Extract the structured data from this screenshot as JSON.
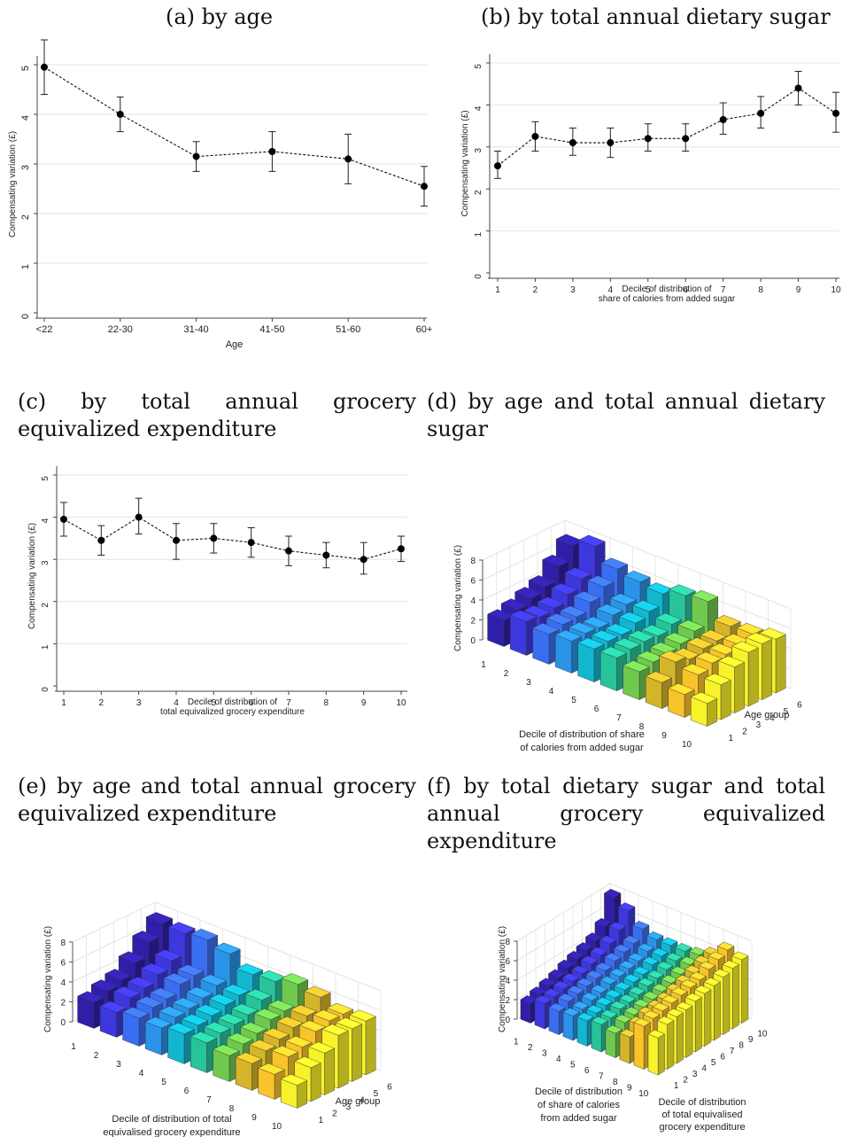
{
  "captions": {
    "a": "(a) by age",
    "b": "(b) by total annual dietary sugar",
    "c": "(c) by total annual grocery equivalized expenditure",
    "d": "(d) by age and total annual dietary sugar",
    "e": "(e) by age and total annual grocery equivalized expenditure",
    "f": "(f) by total dietary sugar and total annual grocery equivalized expenditure"
  },
  "chart_data": [
    {
      "id": "a",
      "type": "line",
      "categories": [
        "<22",
        "22-30",
        "31-40",
        "41-50",
        "51-60",
        "60+"
      ],
      "values": [
        4.95,
        4.0,
        3.15,
        3.25,
        3.1,
        2.55
      ],
      "ci_low": [
        4.4,
        3.65,
        2.85,
        2.85,
        2.6,
        2.15
      ],
      "ci_high": [
        5.5,
        4.35,
        3.45,
        3.65,
        3.6,
        2.95
      ],
      "xlabel": "Age",
      "ylabel": "Compensating variation (£)",
      "ylim": [
        0,
        5
      ],
      "yticks": [
        "0",
        "1",
        "2",
        "3",
        "4",
        "5"
      ],
      "grid": true
    },
    {
      "id": "b",
      "type": "line",
      "categories": [
        "1",
        "2",
        "3",
        "4",
        "5",
        "6",
        "7",
        "8",
        "9",
        "10"
      ],
      "values": [
        2.55,
        3.25,
        3.1,
        3.1,
        3.2,
        3.2,
        3.65,
        3.8,
        4.4,
        3.8
      ],
      "ci_low": [
        2.25,
        2.9,
        2.8,
        2.75,
        2.9,
        2.9,
        3.3,
        3.45,
        4.0,
        3.35
      ],
      "ci_high": [
        2.9,
        3.6,
        3.45,
        3.45,
        3.55,
        3.55,
        4.05,
        4.2,
        4.8,
        4.3
      ],
      "xlabel": [
        "Decile of distribution of",
        "share of calories from added sugar"
      ],
      "ylabel": "Compensating variation (£)",
      "ylim": [
        0,
        5
      ],
      "yticks": [
        "0",
        "1",
        "2",
        "3",
        "4",
        "5"
      ],
      "grid": true
    },
    {
      "id": "c",
      "type": "line",
      "categories": [
        "1",
        "2",
        "3",
        "4",
        "5",
        "6",
        "7",
        "8",
        "9",
        "10"
      ],
      "values": [
        3.95,
        3.45,
        4.0,
        3.45,
        3.5,
        3.4,
        3.2,
        3.1,
        3.0,
        3.25
      ],
      "ci_low": [
        3.55,
        3.1,
        3.6,
        3.0,
        3.15,
        3.05,
        2.85,
        2.8,
        2.65,
        2.95
      ],
      "ci_high": [
        4.35,
        3.8,
        4.45,
        3.85,
        3.85,
        3.75,
        3.55,
        3.4,
        3.4,
        3.55
      ],
      "xlabel": [
        "Decile of distribution of",
        "total equivalized grocery expenditure"
      ],
      "ylabel": "Compensating variation (£)",
      "ylim": [
        0,
        5
      ],
      "yticks": [
        "0",
        "1",
        "2",
        "3",
        "4",
        "5"
      ],
      "grid": true
    },
    {
      "id": "d",
      "type": "bar3d",
      "x_ticks": [
        "1",
        "2",
        "3",
        "4",
        "5",
        "6",
        "7",
        "8",
        "9",
        "10"
      ],
      "y_ticks": [
        "1",
        "2",
        "3",
        "4",
        "5",
        "6"
      ],
      "z_ticks": [
        "0",
        "2",
        "4",
        "6",
        "8"
      ],
      "xlabel": [
        "Decile of distribution of share",
        "of calories from added sugar"
      ],
      "ylabel": "Age group",
      "zlabel": "Compensating variation (£)",
      "colors": [
        "#2f1fa8",
        "#3d37e0",
        "#3a6ef2",
        "#2a93e8",
        "#12b6cf",
        "#27c49a",
        "#70c94f",
        "#d4b52a",
        "#f9c42a",
        "#f8f22a"
      ],
      "values": [
        [
          2.6,
          3.4,
          3.0,
          3.2,
          3.3,
          3.3,
          2.8,
          2.6,
          2.3,
          2.3
        ],
        [
          3.0,
          3.2,
          3.3,
          3.3,
          3.4,
          3.5,
          3.1,
          4.0,
          3.6,
          3.5
        ],
        [
          3.5,
          3.4,
          3.4,
          3.2,
          3.4,
          3.6,
          3.3,
          3.6,
          4.1,
          4.6
        ],
        [
          4.0,
          4.1,
          4.2,
          3.8,
          3.9,
          3.5,
          3.6,
          4.0,
          4.3,
          5.4
        ],
        [
          5.4,
          5.0,
          5.1,
          4.2,
          4.4,
          4.0,
          4.2,
          4.1,
          4.6,
          5.6
        ],
        [
          6.8,
          7.6,
          6.2,
          5.8,
          5.5,
          6.2,
          6.5,
          4.9,
          5.0,
          5.4
        ]
      ]
    },
    {
      "id": "e",
      "type": "bar3d",
      "x_ticks": [
        "1",
        "2",
        "3",
        "4",
        "5",
        "6",
        "7",
        "8",
        "9",
        "10"
      ],
      "y_ticks": [
        "1",
        "2",
        "3",
        "4",
        "5",
        "6"
      ],
      "z_ticks": [
        "0",
        "2",
        "4",
        "6",
        "8"
      ],
      "xlabel": [
        "Decile of distribution of total",
        "equivalised grocery expenditure"
      ],
      "ylabel": "Age group",
      "zlabel": "Compensating variation (£)",
      "colors": [
        "#2f1fa8",
        "#3d37e0",
        "#3a6ef2",
        "#2a93e8",
        "#12b6cf",
        "#27c49a",
        "#70c94f",
        "#d4b52a",
        "#f9c42a",
        "#f8f22a"
      ],
      "values": [
        [
          2.6,
          2.5,
          2.8,
          2.7,
          3.0,
          3.0,
          2.6,
          2.7,
          2.5,
          2.3
        ],
        [
          3.1,
          3.3,
          3.2,
          3.1,
          3.2,
          3.3,
          3.1,
          3.3,
          3.6,
          3.4
        ],
        [
          3.5,
          3.6,
          3.4,
          3.3,
          3.5,
          3.5,
          3.5,
          3.8,
          3.9,
          4.2
        ],
        [
          4.6,
          4.3,
          4.2,
          3.7,
          3.9,
          3.8,
          4.2,
          4.3,
          4.8,
          5.3
        ],
        [
          6.0,
          5.0,
          4.4,
          4.3,
          4.2,
          4.6,
          4.4,
          4.8,
          5.2,
          5.3
        ],
        [
          7.2,
          7.1,
          7.3,
          6.8,
          5.6,
          5.8,
          6.4,
          6.0,
          5.2,
          5.4
        ]
      ]
    },
    {
      "id": "f",
      "type": "bar3d",
      "x_ticks": [
        "1",
        "2",
        "3",
        "4",
        "5",
        "6",
        "7",
        "8",
        "9",
        "10"
      ],
      "y_ticks": [
        "1",
        "2",
        "3",
        "4",
        "5",
        "6",
        "7",
        "8",
        "9",
        "10"
      ],
      "z_ticks": [
        "0",
        "2",
        "4",
        "6",
        "8"
      ],
      "xlabel": [
        "Decile of distribution",
        "of share of calories",
        "from added sugar"
      ],
      "ylabel": [
        "Decile of distribution",
        "of total equivalised",
        "grocery expenditure"
      ],
      "zlabel": "Compensating variation (£)",
      "colors": [
        "#2f1fa8",
        "#3d37e0",
        "#3a6ef2",
        "#2a93e8",
        "#12b6cf",
        "#27c49a",
        "#70c94f",
        "#d4b52a",
        "#f9c42a",
        "#f8f22a"
      ],
      "values": [
        [
          2.0,
          2.6,
          2.4,
          2.5,
          2.6,
          2.8,
          2.5,
          2.7,
          4.4,
          3.8
        ],
        [
          2.3,
          2.7,
          2.8,
          2.6,
          2.8,
          2.9,
          3.0,
          3.4,
          4.6,
          4.6
        ],
        [
          2.6,
          2.9,
          3.0,
          2.9,
          3.0,
          3.2,
          3.2,
          3.8,
          4.8,
          4.8
        ],
        [
          2.9,
          3.1,
          3.2,
          3.1,
          3.2,
          3.3,
          3.4,
          3.9,
          5.0,
          4.9
        ],
        [
          3.3,
          3.3,
          3.4,
          3.4,
          3.4,
          3.5,
          3.6,
          4.1,
          5.2,
          5.2
        ],
        [
          3.6,
          3.7,
          3.6,
          3.6,
          3.6,
          3.8,
          3.8,
          4.4,
          5.4,
          5.4
        ],
        [
          3.9,
          4.0,
          4.0,
          3.8,
          3.8,
          4.0,
          4.1,
          4.7,
          5.6,
          5.6
        ],
        [
          4.3,
          4.6,
          4.3,
          4.0,
          4.2,
          4.3,
          4.4,
          5.1,
          6.1,
          5.9
        ],
        [
          5.2,
          5.4,
          4.6,
          4.4,
          4.5,
          4.6,
          4.8,
          5.5,
          6.5,
          6.2
        ],
        [
          7.6,
          6.8,
          5.5,
          5.0,
          5.0,
          5.0,
          5.2,
          5.8,
          6.9,
          6.5
        ]
      ]
    }
  ]
}
